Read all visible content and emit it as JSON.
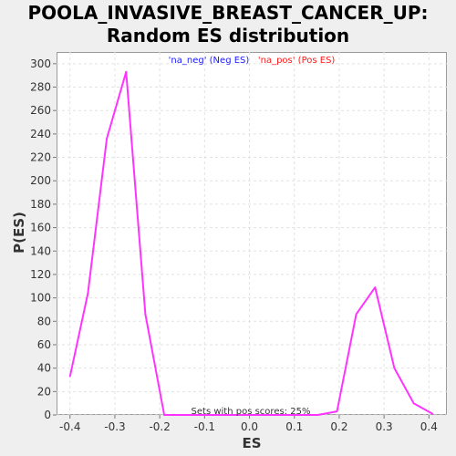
{
  "title_line1": "POOLA_INVASIVE_BREAST_CANCER_UP:",
  "title_line2": "Random ES distribution",
  "legend": {
    "neg_label": "'na_neg' (Neg ES)",
    "pos_label": "'na_pos' (Pos ES)",
    "neg_color": "#1a1aff",
    "pos_color": "#ff1a1a"
  },
  "annotation": "Sets with pos scores: 25%",
  "chart_data": {
    "type": "line",
    "xlabel": "ES",
    "ylabel": "P(ES)",
    "xlim": [
      -0.43,
      0.44
    ],
    "ylim": [
      0,
      310
    ],
    "x_ticks": [
      -0.4,
      -0.3,
      -0.2,
      -0.1,
      0.0,
      0.1,
      0.2,
      0.3,
      0.4
    ],
    "x_tick_labels": [
      "-0.4",
      "-0.3",
      "-0.2",
      "-0.1",
      "0.0",
      "0.1",
      "0.2",
      "0.3",
      "0.4"
    ],
    "y_ticks": [
      0,
      20,
      40,
      60,
      80,
      100,
      120,
      140,
      160,
      180,
      200,
      220,
      240,
      260,
      280,
      300
    ],
    "grid": true,
    "legend_position": "top-center",
    "series": [
      {
        "color": "#ff33ff",
        "x": [
          -0.4,
          -0.36,
          -0.318,
          -0.275,
          -0.232,
          -0.19,
          -0.147,
          -0.104,
          -0.062,
          -0.019,
          0.024,
          0.067,
          0.109,
          0.152,
          0.195,
          0.238,
          0.28,
          0.323,
          0.366,
          0.408
        ],
        "y": [
          33,
          104,
          236,
          293,
          86,
          0,
          0,
          0,
          0,
          0,
          0,
          0,
          0,
          0,
          3,
          86,
          109,
          40,
          10,
          1
        ]
      }
    ]
  }
}
